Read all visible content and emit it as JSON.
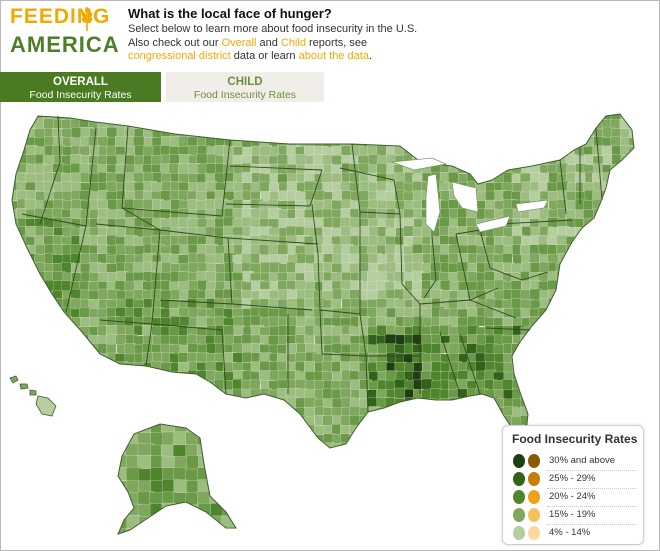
{
  "header": {
    "logo_line1": "FEEDING",
    "logo_line2": "AMERICA",
    "title": "What is the local face of hunger?",
    "intro_part1": "Select below to learn more about food insecurity in the U.S. Also check out our ",
    "link_overall": "Overall",
    "intro_and": " and ",
    "link_child": "Child",
    "intro_part2": " reports, see ",
    "link_congressional": "congressional district",
    "intro_part3": " data or learn ",
    "link_about": "about the data",
    "intro_end": "."
  },
  "tabs": [
    {
      "title": "OVERALL",
      "subtitle": "Food Insecurity Rates",
      "active": true
    },
    {
      "title": "CHILD",
      "subtitle": "Food Insecurity Rates",
      "active": false
    }
  ],
  "legend": {
    "title": "Food Insecurity Rates",
    "rows": [
      {
        "label": "30% and above",
        "overall_color": "#1f3f12",
        "child_color": "#8a5a00"
      },
      {
        "label": "25% - 29%",
        "overall_color": "#33621b",
        "child_color": "#c67d00"
      },
      {
        "label": "20% - 24%",
        "overall_color": "#4f852c",
        "child_color": "#eea21a"
      },
      {
        "label": "15% - 19%",
        "overall_color": "#7fa85e",
        "child_color": "#f5c25e"
      },
      {
        "label": "4% - 14%",
        "overall_color": "#b5cd9f",
        "child_color": "#f9d9a0"
      }
    ]
  },
  "colors": {
    "brand_orange": "#f2a900",
    "brand_green": "#4e7e2a",
    "tab_active": "#4a7a21",
    "tab_inactive": "#f1eeea"
  },
  "map": {
    "icon": "us-counties-choropleth",
    "palette": [
      "#b5cd9f",
      "#9cbc80",
      "#7fa85e",
      "#6a9a48",
      "#4f852c",
      "#33621b",
      "#1f3f12"
    ]
  }
}
